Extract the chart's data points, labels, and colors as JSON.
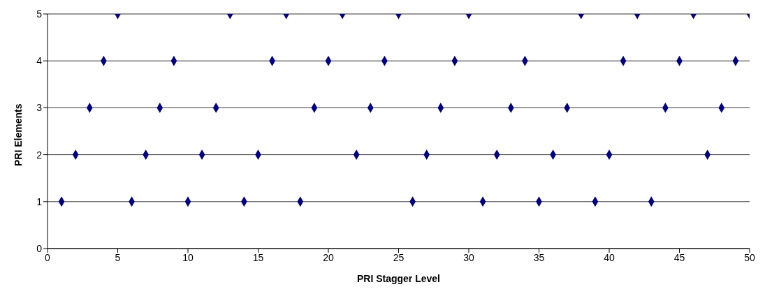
{
  "chart_data": {
    "type": "scatter",
    "xlabel": "PRI Stagger Level",
    "ylabel": "PRI Elements",
    "x": [
      1,
      2,
      3,
      4,
      5,
      6,
      7,
      8,
      9,
      10,
      11,
      12,
      13,
      14,
      15,
      16,
      17,
      18,
      19,
      20,
      21,
      22,
      23,
      24,
      25,
      26,
      27,
      28,
      29,
      30,
      31,
      32,
      33,
      34,
      35,
      36,
      37,
      38,
      39,
      40,
      41,
      42,
      43,
      44,
      45,
      46,
      47,
      48,
      49,
      50
    ],
    "series": [
      {
        "color": "#000080",
        "values": [
          1,
          2,
          3,
          4,
          5,
          1,
          2,
          3,
          4,
          1,
          2,
          3,
          5,
          1,
          2,
          4,
          5,
          1,
          3,
          4,
          5,
          2,
          3,
          4,
          5,
          1,
          2,
          3,
          4,
          5,
          1,
          2,
          3,
          4,
          1,
          2,
          3,
          5,
          1,
          2,
          4,
          5,
          1,
          3,
          4,
          5,
          2,
          3,
          4,
          5
        ]
      }
    ],
    "xlim": [
      0,
      50
    ],
    "xticks": [
      0,
      5,
      10,
      15,
      20,
      25,
      30,
      35,
      40,
      45,
      50
    ],
    "ylim": [
      0,
      5
    ],
    "yticks": [
      0,
      1,
      2,
      3,
      4,
      5
    ],
    "grid": "y",
    "legend": false,
    "marker": "diamond"
  }
}
